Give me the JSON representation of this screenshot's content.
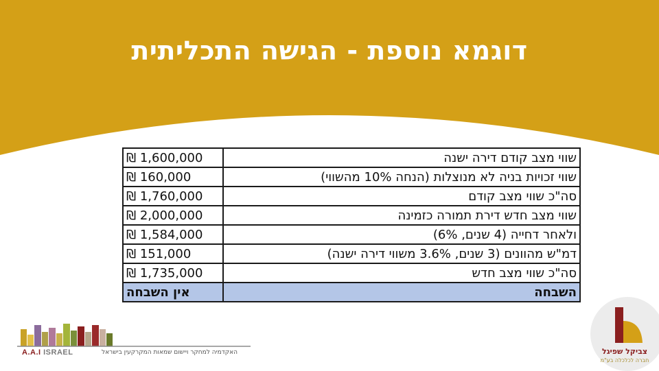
{
  "slide": {
    "title": "דוגמא נוספת - הגישה התכליתית",
    "colors": {
      "banner": "#d4a017",
      "total_row": "#b4c6e7"
    }
  },
  "table": {
    "rows": [
      {
        "label": "שווי מצב קודם דירה ישנה",
        "amount": "1,600,000 ₪"
      },
      {
        "label": "שווי זכויות בניה לא מנוצלות (הנחה 10% מהשווי)",
        "amount": "160,000 ₪"
      },
      {
        "label": "סה\"כ שווי מצב קודם",
        "amount": "1,760,000 ₪"
      },
      {
        "label": "שווי מצב חדש דירת תמורה כזמינה",
        "amount": "2,000,000 ₪"
      },
      {
        "label": "ולאחר דחייה (4 שנים, 6%)",
        "amount": "1,584,000 ₪"
      },
      {
        "label": "דמ\"ש מהוונים (3 שנים, 3.6% משווי דירה ישנה)",
        "amount": "151,000 ₪"
      },
      {
        "label": "סה\"כ שווי מצב חדש",
        "amount": "1,735,000 ₪"
      }
    ],
    "total": {
      "label": "השבחה",
      "amount": "אין השבחה"
    }
  },
  "logos": {
    "aai": {
      "name_a": "A.A.I",
      "name_b": "ISRAEL",
      "subtitle": "האקדמיה למחקר ויישום שמאות המקרקעין בישראל"
    },
    "tzvikel": {
      "name": "צביקל שפיגל",
      "subtitle": "חברה לכלכלה בע\"מ"
    }
  }
}
